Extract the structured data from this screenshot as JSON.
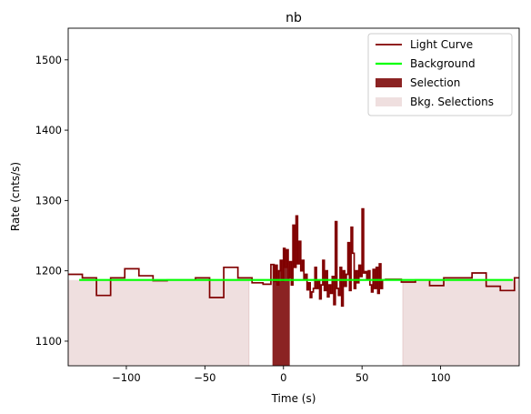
{
  "chart_data": {
    "type": "line",
    "title": "nb",
    "xlabel": "Time (s)",
    "ylabel": "Rate (cnts/s)",
    "xlim": [
      -137,
      150
    ],
    "ylim": [
      1065,
      1545
    ],
    "xticks": [
      -100,
      -50,
      0,
      50,
      100
    ],
    "yticks": [
      1100,
      1200,
      1300,
      1400,
      1500
    ],
    "grid": false,
    "legend_position": "top-right",
    "background_level": 1187,
    "selection": [
      -7,
      4
    ],
    "bkg_selections": [
      [
        -137,
        -22
      ],
      [
        76,
        150
      ]
    ],
    "light_curve_steps": [
      [
        -137,
        1195
      ],
      [
        -128,
        1190
      ],
      [
        -119,
        1165
      ],
      [
        -110,
        1190
      ],
      [
        -101,
        1203
      ],
      [
        -92,
        1193
      ],
      [
        -83,
        1186
      ],
      [
        -74,
        1187
      ],
      [
        -65,
        1187
      ],
      [
        -56,
        1190
      ],
      [
        -47,
        1162
      ],
      [
        -38,
        1205
      ],
      [
        -29,
        1190
      ],
      [
        -20,
        1183
      ],
      [
        -13,
        1181
      ],
      [
        -8,
        1209
      ],
      [
        -6,
        1185
      ],
      [
        -5,
        1208
      ],
      [
        -4,
        1180
      ],
      [
        -3,
        1200
      ],
      [
        -2,
        1215
      ],
      [
        -1,
        1186
      ],
      [
        0,
        1232
      ],
      [
        1,
        1205
      ],
      [
        2,
        1230
      ],
      [
        3,
        1190
      ],
      [
        4,
        1213
      ],
      [
        5,
        1180
      ],
      [
        6,
        1265
      ],
      [
        7,
        1205
      ],
      [
        8,
        1278
      ],
      [
        9,
        1210
      ],
      [
        10,
        1242
      ],
      [
        11,
        1200
      ],
      [
        12,
        1215
      ],
      [
        13,
        1187
      ],
      [
        14,
        1195
      ],
      [
        15,
        1173
      ],
      [
        16,
        1183
      ],
      [
        17,
        1162
      ],
      [
        18,
        1170
      ],
      [
        19,
        1175
      ],
      [
        20,
        1205
      ],
      [
        21,
        1175
      ],
      [
        22,
        1185
      ],
      [
        23,
        1160
      ],
      [
        24,
        1180
      ],
      [
        25,
        1215
      ],
      [
        26,
        1172
      ],
      [
        27,
        1200
      ],
      [
        28,
        1163
      ],
      [
        29,
        1180
      ],
      [
        30,
        1168
      ],
      [
        31,
        1192
      ],
      [
        32,
        1152
      ],
      [
        33,
        1270
      ],
      [
        34,
        1175
      ],
      [
        35,
        1165
      ],
      [
        36,
        1205
      ],
      [
        37,
        1150
      ],
      [
        38,
        1200
      ],
      [
        39,
        1178
      ],
      [
        40,
        1195
      ],
      [
        41,
        1240
      ],
      [
        42,
        1172
      ],
      [
        43,
        1262
      ],
      [
        44,
        1225
      ],
      [
        45,
        1175
      ],
      [
        46,
        1200
      ],
      [
        47,
        1183
      ],
      [
        48,
        1208
      ],
      [
        49,
        1192
      ],
      [
        50,
        1288
      ],
      [
        51,
        1197
      ],
      [
        52,
        1199
      ],
      [
        53,
        1188
      ],
      [
        54,
        1200
      ],
      [
        55,
        1180
      ],
      [
        56,
        1170
      ],
      [
        57,
        1202
      ],
      [
        58,
        1175
      ],
      [
        59,
        1205
      ],
      [
        60,
        1168
      ],
      [
        61,
        1210
      ],
      [
        62,
        1175
      ],
      [
        63,
        1187
      ],
      [
        65,
        1188
      ],
      [
        67,
        1188
      ],
      [
        75,
        1184
      ],
      [
        84,
        1187
      ],
      [
        93,
        1179
      ],
      [
        102,
        1190
      ],
      [
        111,
        1190
      ],
      [
        120,
        1197
      ],
      [
        129,
        1178
      ],
      [
        138,
        1172
      ],
      [
        147,
        1190
      ]
    ],
    "light_curve_end": 150,
    "legend": [
      {
        "label": "Light Curve",
        "kind": "line",
        "color": "#800000"
      },
      {
        "label": "Background",
        "kind": "line",
        "color": "#00ff00"
      },
      {
        "label": "Selection",
        "kind": "patch",
        "color": "#8b2323"
      },
      {
        "label": "Bkg. Selections",
        "kind": "patch",
        "color": "#efdfdf"
      }
    ]
  }
}
